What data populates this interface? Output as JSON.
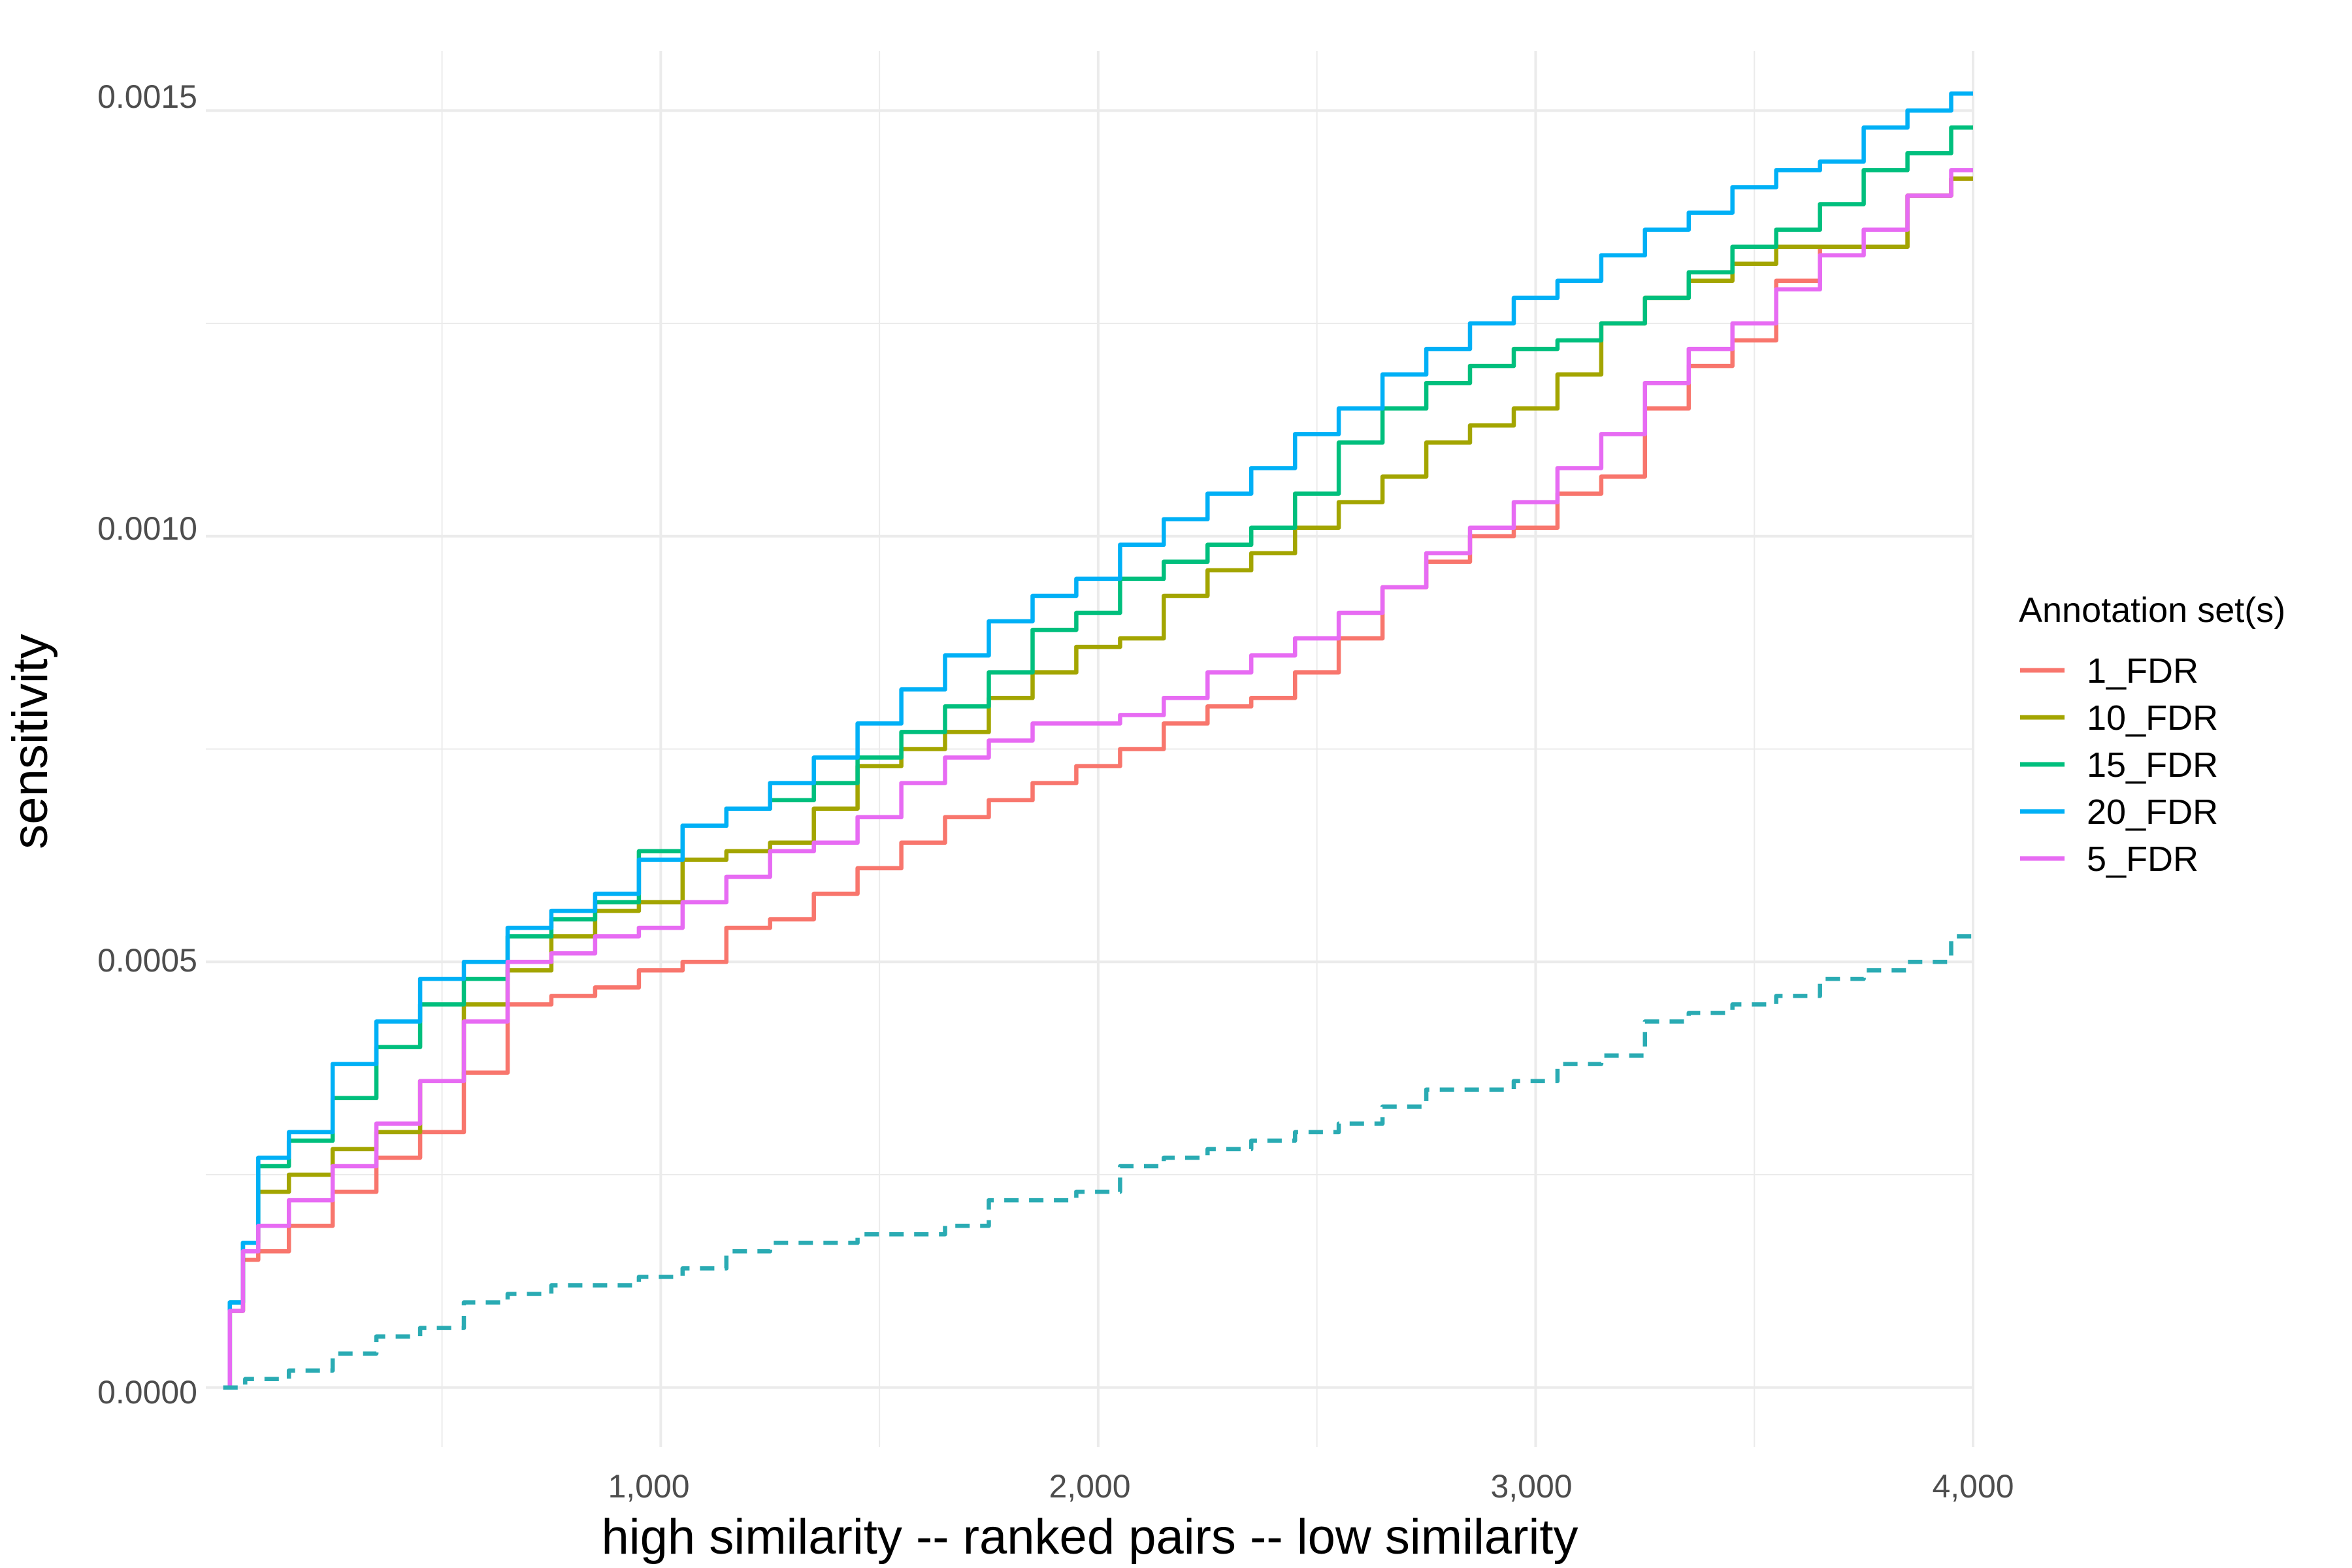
{
  "chart_data": {
    "type": "line",
    "xlabel": "high similarity -- ranked pairs -- low similarity",
    "ylabel": "sensitivity",
    "xlim": [
      -40,
      4000
    ],
    "ylim": [
      -7e-05,
      0.00157
    ],
    "x_ticks": [
      1000,
      2000,
      3000,
      4000
    ],
    "x_tick_labels": [
      "1,000",
      "2,000",
      "3,000",
      "4,000"
    ],
    "y_ticks": [
      0,
      0.0005,
      0.001,
      0.0015
    ],
    "y_tick_labels": [
      "0.0000",
      "0.0005",
      "0.0010",
      "0.0015"
    ],
    "grid": true,
    "legend": {
      "title": "Annotation set(s)",
      "position": "right"
    },
    "series": [
      {
        "name": "1_FDR",
        "color": "#F8766D",
        "points": [
          [
            0,
            0
          ],
          [
            30,
            9e-05
          ],
          [
            60,
            0.00015
          ],
          [
            100,
            0.00016
          ],
          [
            200,
            0.00019
          ],
          [
            300,
            0.00023
          ],
          [
            400,
            0.00027
          ],
          [
            500,
            0.0003
          ],
          [
            600,
            0.00037
          ],
          [
            700,
            0.00045
          ],
          [
            800,
            0.00046
          ],
          [
            900,
            0.00047
          ],
          [
            1000,
            0.00049
          ],
          [
            1100,
            0.0005
          ],
          [
            1200,
            0.00054
          ],
          [
            1300,
            0.00055
          ],
          [
            1400,
            0.00058
          ],
          [
            1500,
            0.00061
          ],
          [
            1600,
            0.00064
          ],
          [
            1700,
            0.00067
          ],
          [
            1800,
            0.00069
          ],
          [
            1900,
            0.00071
          ],
          [
            2000,
            0.00073
          ],
          [
            2100,
            0.00075
          ],
          [
            2200,
            0.00078
          ],
          [
            2300,
            0.0008
          ],
          [
            2400,
            0.00081
          ],
          [
            2500,
            0.00084
          ],
          [
            2600,
            0.00088
          ],
          [
            2700,
            0.00094
          ],
          [
            2800,
            0.00097
          ],
          [
            2900,
            0.001
          ],
          [
            3000,
            0.00101
          ],
          [
            3100,
            0.00105
          ],
          [
            3200,
            0.00107
          ],
          [
            3300,
            0.00115
          ],
          [
            3400,
            0.0012
          ],
          [
            3500,
            0.00123
          ],
          [
            3600,
            0.0013
          ],
          [
            3700,
            0.00134
          ],
          [
            3800,
            0.00134
          ],
          [
            3900,
            0.0014
          ],
          [
            4000,
            0.00142
          ]
        ]
      },
      {
        "name": "10_FDR",
        "color": "#A3A500",
        "points": [
          [
            0,
            0
          ],
          [
            30,
            9e-05
          ],
          [
            60,
            0.00016
          ],
          [
            100,
            0.00023
          ],
          [
            200,
            0.00025
          ],
          [
            300,
            0.00028
          ],
          [
            400,
            0.0003
          ],
          [
            500,
            0.00036
          ],
          [
            600,
            0.00045
          ],
          [
            700,
            0.00049
          ],
          [
            800,
            0.00053
          ],
          [
            900,
            0.00056
          ],
          [
            1000,
            0.00057
          ],
          [
            1100,
            0.00062
          ],
          [
            1200,
            0.00063
          ],
          [
            1300,
            0.00064
          ],
          [
            1400,
            0.00068
          ],
          [
            1500,
            0.00073
          ],
          [
            1600,
            0.00075
          ],
          [
            1700,
            0.00077
          ],
          [
            1800,
            0.00081
          ],
          [
            1900,
            0.00084
          ],
          [
            2000,
            0.00087
          ],
          [
            2100,
            0.00088
          ],
          [
            2200,
            0.00093
          ],
          [
            2300,
            0.00096
          ],
          [
            2400,
            0.00098
          ],
          [
            2500,
            0.00101
          ],
          [
            2600,
            0.00104
          ],
          [
            2700,
            0.00107
          ],
          [
            2800,
            0.00111
          ],
          [
            2900,
            0.00113
          ],
          [
            3000,
            0.00115
          ],
          [
            3100,
            0.00119
          ],
          [
            3200,
            0.00125
          ],
          [
            3300,
            0.00128
          ],
          [
            3400,
            0.0013
          ],
          [
            3500,
            0.00132
          ],
          [
            3600,
            0.00134
          ],
          [
            3700,
            0.00134
          ],
          [
            3800,
            0.00134
          ],
          [
            3900,
            0.0014
          ],
          [
            4000,
            0.00142
          ]
        ]
      },
      {
        "name": "15_FDR",
        "color": "#00BF7D",
        "points": [
          [
            0,
            0
          ],
          [
            30,
            0.0001
          ],
          [
            60,
            0.00017
          ],
          [
            100,
            0.00026
          ],
          [
            200,
            0.00029
          ],
          [
            300,
            0.00034
          ],
          [
            400,
            0.0004
          ],
          [
            500,
            0.00045
          ],
          [
            600,
            0.00048
          ],
          [
            700,
            0.00053
          ],
          [
            800,
            0.00055
          ],
          [
            900,
            0.00057
          ],
          [
            1000,
            0.00063
          ],
          [
            1100,
            0.00066
          ],
          [
            1200,
            0.00068
          ],
          [
            1300,
            0.00069
          ],
          [
            1400,
            0.00071
          ],
          [
            1500,
            0.00074
          ],
          [
            1600,
            0.00077
          ],
          [
            1700,
            0.0008
          ],
          [
            1800,
            0.00084
          ],
          [
            1900,
            0.00089
          ],
          [
            2000,
            0.00091
          ],
          [
            2100,
            0.00095
          ],
          [
            2200,
            0.00097
          ],
          [
            2300,
            0.00099
          ],
          [
            2400,
            0.00101
          ],
          [
            2500,
            0.00105
          ],
          [
            2600,
            0.00111
          ],
          [
            2700,
            0.00115
          ],
          [
            2800,
            0.00118
          ],
          [
            2900,
            0.0012
          ],
          [
            3000,
            0.00122
          ],
          [
            3100,
            0.00123
          ],
          [
            3200,
            0.00125
          ],
          [
            3300,
            0.00128
          ],
          [
            3400,
            0.00131
          ],
          [
            3500,
            0.00134
          ],
          [
            3600,
            0.00136
          ],
          [
            3700,
            0.00139
          ],
          [
            3800,
            0.00143
          ],
          [
            3900,
            0.00145
          ],
          [
            4000,
            0.00148
          ]
        ]
      },
      {
        "name": "20_FDR",
        "color": "#00B0F6",
        "points": [
          [
            0,
            0
          ],
          [
            30,
            0.0001
          ],
          [
            60,
            0.00017
          ],
          [
            100,
            0.00027
          ],
          [
            200,
            0.0003
          ],
          [
            300,
            0.00038
          ],
          [
            400,
            0.00043
          ],
          [
            500,
            0.00048
          ],
          [
            600,
            0.0005
          ],
          [
            700,
            0.00054
          ],
          [
            800,
            0.00056
          ],
          [
            900,
            0.00058
          ],
          [
            1000,
            0.00062
          ],
          [
            1100,
            0.00066
          ],
          [
            1200,
            0.00068
          ],
          [
            1300,
            0.00071
          ],
          [
            1400,
            0.00074
          ],
          [
            1500,
            0.00078
          ],
          [
            1600,
            0.00082
          ],
          [
            1700,
            0.00086
          ],
          [
            1800,
            0.0009
          ],
          [
            1900,
            0.00093
          ],
          [
            2000,
            0.00095
          ],
          [
            2100,
            0.00099
          ],
          [
            2200,
            0.00102
          ],
          [
            2300,
            0.00105
          ],
          [
            2400,
            0.00108
          ],
          [
            2500,
            0.00112
          ],
          [
            2600,
            0.00115
          ],
          [
            2700,
            0.00119
          ],
          [
            2800,
            0.00122
          ],
          [
            2900,
            0.00125
          ],
          [
            3000,
            0.00128
          ],
          [
            3100,
            0.0013
          ],
          [
            3200,
            0.00133
          ],
          [
            3300,
            0.00136
          ],
          [
            3400,
            0.00138
          ],
          [
            3500,
            0.00141
          ],
          [
            3600,
            0.00143
          ],
          [
            3700,
            0.00144
          ],
          [
            3800,
            0.00148
          ],
          [
            3900,
            0.0015
          ],
          [
            4000,
            0.00152
          ]
        ]
      },
      {
        "name": "5_FDR",
        "color": "#E76BF3",
        "points": [
          [
            0,
            0
          ],
          [
            30,
            9e-05
          ],
          [
            60,
            0.00016
          ],
          [
            100,
            0.00019
          ],
          [
            200,
            0.00022
          ],
          [
            300,
            0.00026
          ],
          [
            400,
            0.00031
          ],
          [
            500,
            0.00036
          ],
          [
            600,
            0.00043
          ],
          [
            700,
            0.0005
          ],
          [
            800,
            0.00051
          ],
          [
            900,
            0.00053
          ],
          [
            1000,
            0.00054
          ],
          [
            1100,
            0.00057
          ],
          [
            1200,
            0.0006
          ],
          [
            1300,
            0.00063
          ],
          [
            1400,
            0.00064
          ],
          [
            1500,
            0.00067
          ],
          [
            1600,
            0.00071
          ],
          [
            1700,
            0.00074
          ],
          [
            1800,
            0.00076
          ],
          [
            1900,
            0.00078
          ],
          [
            2000,
            0.00078
          ],
          [
            2100,
            0.00079
          ],
          [
            2200,
            0.00081
          ],
          [
            2300,
            0.00084
          ],
          [
            2400,
            0.00086
          ],
          [
            2500,
            0.00088
          ],
          [
            2600,
            0.00091
          ],
          [
            2700,
            0.00094
          ],
          [
            2800,
            0.00098
          ],
          [
            2900,
            0.00101
          ],
          [
            3000,
            0.00104
          ],
          [
            3100,
            0.00108
          ],
          [
            3200,
            0.00112
          ],
          [
            3300,
            0.00118
          ],
          [
            3400,
            0.00122
          ],
          [
            3500,
            0.00125
          ],
          [
            3600,
            0.00129
          ],
          [
            3700,
            0.00133
          ],
          [
            3800,
            0.00136
          ],
          [
            3900,
            0.0014
          ],
          [
            4000,
            0.00143
          ]
        ]
      },
      {
        "color": "#2AABB3",
        "dashed": true,
        "points": [
          [
            0,
            0
          ],
          [
            100,
            1e-05
          ],
          [
            200,
            2e-05
          ],
          [
            300,
            4e-05
          ],
          [
            400,
            6e-05
          ],
          [
            500,
            7e-05
          ],
          [
            600,
            0.0001
          ],
          [
            700,
            0.00011
          ],
          [
            800,
            0.00012
          ],
          [
            900,
            0.00012
          ],
          [
            1000,
            0.00013
          ],
          [
            1100,
            0.00014
          ],
          [
            1200,
            0.00016
          ],
          [
            1300,
            0.00017
          ],
          [
            1400,
            0.00017
          ],
          [
            1500,
            0.00018
          ],
          [
            1600,
            0.00018
          ],
          [
            1700,
            0.00019
          ],
          [
            1800,
            0.00022
          ],
          [
            1900,
            0.00022
          ],
          [
            2000,
            0.00023
          ],
          [
            2100,
            0.00026
          ],
          [
            2200,
            0.00027
          ],
          [
            2300,
            0.00028
          ],
          [
            2400,
            0.00029
          ],
          [
            2500,
            0.0003
          ],
          [
            2600,
            0.00031
          ],
          [
            2700,
            0.00033
          ],
          [
            2800,
            0.00035
          ],
          [
            2900,
            0.00035
          ],
          [
            3000,
            0.00036
          ],
          [
            3100,
            0.00038
          ],
          [
            3200,
            0.00039
          ],
          [
            3300,
            0.00043
          ],
          [
            3400,
            0.00044
          ],
          [
            3500,
            0.00045
          ],
          [
            3600,
            0.00046
          ],
          [
            3700,
            0.00048
          ],
          [
            3800,
            0.00049
          ],
          [
            3900,
            0.0005
          ],
          [
            4000,
            0.00053
          ]
        ]
      }
    ]
  }
}
